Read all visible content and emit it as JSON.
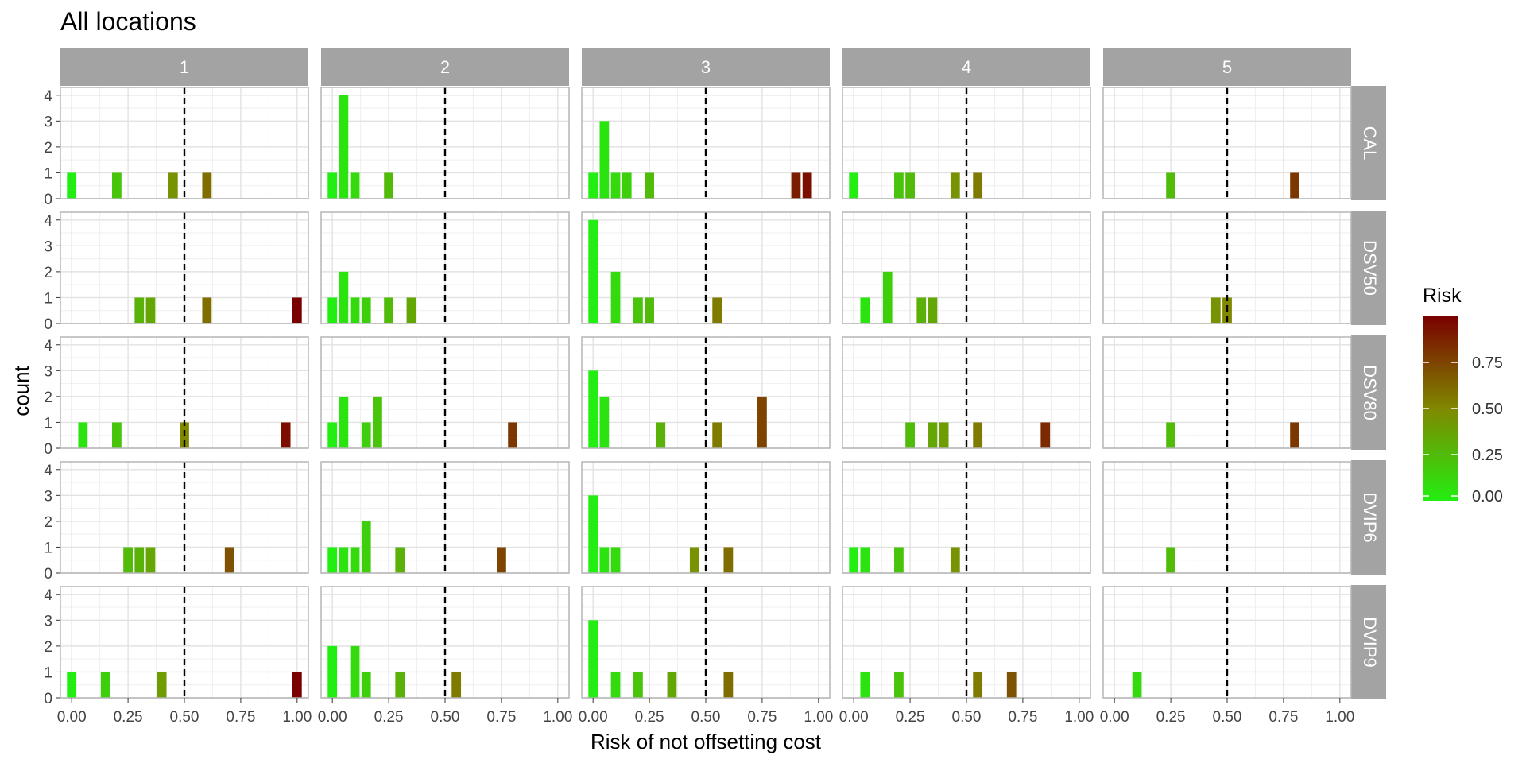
{
  "chart_data": {
    "type": "bar",
    "title": "All locations",
    "xlabel": "Risk of not offsetting cost",
    "ylabel": "count",
    "xlim": [
      -0.05,
      1.05
    ],
    "ylim": [
      0,
      4.3
    ],
    "x_ticks": [
      0,
      0.25,
      0.5,
      0.75,
      1
    ],
    "x_tick_labels": [
      "0.00",
      "0.25",
      "0.50",
      "0.75",
      "1.00"
    ],
    "y_ticks": [
      0,
      1,
      2,
      3,
      4
    ],
    "y_tick_labels": [
      "0",
      "1",
      "2",
      "3",
      "4"
    ],
    "reference_line_x": 0.5,
    "bin_width": 0.05,
    "grid": true,
    "col_facets": [
      "1",
      "2",
      "3",
      "4",
      "5"
    ],
    "row_facets": [
      "CAL",
      "DSV50",
      "DSV80",
      "DVIP6",
      "DVIP9"
    ],
    "legend": {
      "title": "Risk",
      "position": "right",
      "labels": [
        "0.00",
        "0.25",
        "0.50",
        "0.75"
      ],
      "values": [
        0,
        0.25,
        0.5,
        0.75
      ],
      "color_low": "#22ee11",
      "color_high": "#7a0000"
    },
    "colors": {
      "strip_bg": "#a3a3a3",
      "strip_text": "#ffffff",
      "panel_border": "#b5b5b5",
      "grid": "#e2e2e2",
      "ref_line": "#000000"
    },
    "panels": [
      {
        "row": "CAL",
        "col": "1",
        "bars": [
          [
            0,
            1
          ],
          [
            0.2,
            1
          ],
          [
            0.45,
            1
          ],
          [
            0.6,
            1
          ]
        ]
      },
      {
        "row": "CAL",
        "col": "2",
        "bars": [
          [
            0,
            1
          ],
          [
            0.05,
            4
          ],
          [
            0.1,
            1
          ],
          [
            0.25,
            1
          ]
        ]
      },
      {
        "row": "CAL",
        "col": "3",
        "bars": [
          [
            0,
            1
          ],
          [
            0.05,
            3
          ],
          [
            0.1,
            1
          ],
          [
            0.15,
            1
          ],
          [
            0.25,
            1
          ],
          [
            0.9,
            1
          ],
          [
            0.95,
            1
          ]
        ]
      },
      {
        "row": "CAL",
        "col": "4",
        "bars": [
          [
            0,
            1
          ],
          [
            0.2,
            1
          ],
          [
            0.25,
            1
          ],
          [
            0.45,
            1
          ],
          [
            0.55,
            1
          ]
        ]
      },
      {
        "row": "CAL",
        "col": "5",
        "bars": [
          [
            0.25,
            1
          ],
          [
            0.8,
            1
          ]
        ]
      },
      {
        "row": "DSV50",
        "col": "1",
        "bars": [
          [
            0.3,
            1
          ],
          [
            0.35,
            1
          ],
          [
            0.6,
            1
          ],
          [
            1.0,
            1
          ]
        ]
      },
      {
        "row": "DSV50",
        "col": "2",
        "bars": [
          [
            0,
            1
          ],
          [
            0.05,
            2
          ],
          [
            0.1,
            1
          ],
          [
            0.15,
            1
          ],
          [
            0.25,
            1
          ],
          [
            0.35,
            1
          ]
        ]
      },
      {
        "row": "DSV50",
        "col": "3",
        "bars": [
          [
            0,
            4
          ],
          [
            0.1,
            2
          ],
          [
            0.2,
            1
          ],
          [
            0.25,
            1
          ],
          [
            0.55,
            1
          ]
        ]
      },
      {
        "row": "DSV50",
        "col": "4",
        "bars": [
          [
            0.05,
            1
          ],
          [
            0.15,
            2
          ],
          [
            0.3,
            1
          ],
          [
            0.35,
            1
          ]
        ]
      },
      {
        "row": "DSV50",
        "col": "5",
        "bars": [
          [
            0.45,
            1
          ],
          [
            0.5,
            1
          ]
        ]
      },
      {
        "row": "DSV80",
        "col": "1",
        "bars": [
          [
            0.05,
            1
          ],
          [
            0.2,
            1
          ],
          [
            0.5,
            1
          ],
          [
            0.95,
            1
          ]
        ]
      },
      {
        "row": "DSV80",
        "col": "2",
        "bars": [
          [
            0,
            1
          ],
          [
            0.05,
            2
          ],
          [
            0.15,
            1
          ],
          [
            0.2,
            2
          ],
          [
            0.8,
            1
          ]
        ]
      },
      {
        "row": "DSV80",
        "col": "3",
        "bars": [
          [
            0,
            3
          ],
          [
            0.05,
            2
          ],
          [
            0.3,
            1
          ],
          [
            0.55,
            1
          ],
          [
            0.75,
            2
          ]
        ]
      },
      {
        "row": "DSV80",
        "col": "4",
        "bars": [
          [
            0.25,
            1
          ],
          [
            0.35,
            1
          ],
          [
            0.4,
            1
          ],
          [
            0.55,
            1
          ],
          [
            0.85,
            1
          ]
        ]
      },
      {
        "row": "DSV80",
        "col": "5",
        "bars": [
          [
            0.25,
            1
          ],
          [
            0.8,
            1
          ]
        ]
      },
      {
        "row": "DVIP6",
        "col": "1",
        "bars": [
          [
            0.25,
            1
          ],
          [
            0.3,
            1
          ],
          [
            0.35,
            1
          ],
          [
            0.7,
            1
          ]
        ]
      },
      {
        "row": "DVIP6",
        "col": "2",
        "bars": [
          [
            0,
            1
          ],
          [
            0.05,
            1
          ],
          [
            0.1,
            1
          ],
          [
            0.15,
            2
          ],
          [
            0.3,
            1
          ],
          [
            0.75,
            1
          ]
        ]
      },
      {
        "row": "DVIP6",
        "col": "3",
        "bars": [
          [
            0,
            3
          ],
          [
            0.05,
            1
          ],
          [
            0.1,
            1
          ],
          [
            0.45,
            1
          ],
          [
            0.6,
            1
          ]
        ]
      },
      {
        "row": "DVIP6",
        "col": "4",
        "bars": [
          [
            0,
            1
          ],
          [
            0.05,
            1
          ],
          [
            0.2,
            1
          ],
          [
            0.45,
            1
          ]
        ]
      },
      {
        "row": "DVIP6",
        "col": "5",
        "bars": [
          [
            0.25,
            1
          ]
        ]
      },
      {
        "row": "DVIP9",
        "col": "1",
        "bars": [
          [
            0,
            1
          ],
          [
            0.15,
            1
          ],
          [
            0.4,
            1
          ],
          [
            1.0,
            1
          ]
        ]
      },
      {
        "row": "DVIP9",
        "col": "2",
        "bars": [
          [
            0,
            2
          ],
          [
            0.1,
            2
          ],
          [
            0.15,
            1
          ],
          [
            0.3,
            1
          ],
          [
            0.55,
            1
          ]
        ]
      },
      {
        "row": "DVIP9",
        "col": "3",
        "bars": [
          [
            0,
            3
          ],
          [
            0.1,
            1
          ],
          [
            0.2,
            1
          ],
          [
            0.35,
            1
          ],
          [
            0.6,
            1
          ]
        ]
      },
      {
        "row": "DVIP9",
        "col": "4",
        "bars": [
          [
            0.05,
            1
          ],
          [
            0.2,
            1
          ],
          [
            0.55,
            1
          ],
          [
            0.7,
            1
          ]
        ]
      },
      {
        "row": "DVIP9",
        "col": "5",
        "bars": [
          [
            0.1,
            1
          ]
        ]
      }
    ]
  }
}
